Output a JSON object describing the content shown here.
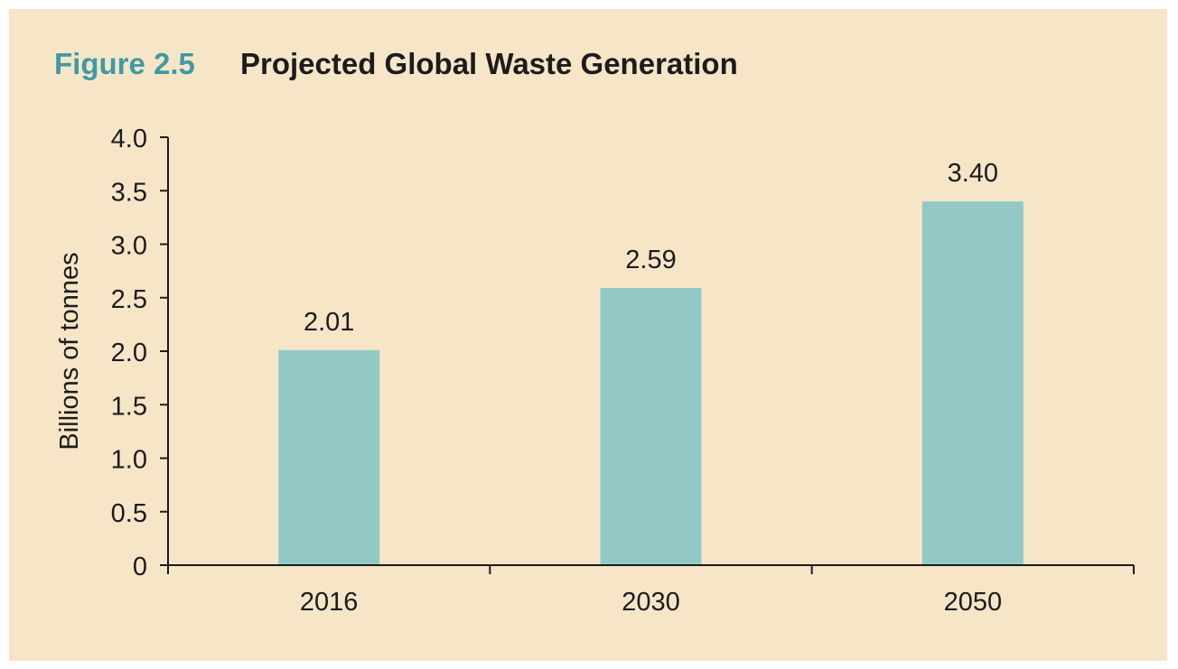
{
  "figure": {
    "label": "Figure 2.5",
    "title": "Projected Global Waste Generation"
  },
  "colors": {
    "background": "#f6e6c7",
    "bar": "#92c9c6",
    "accent": "#3f9aa3",
    "axis": "#1c1c1c"
  },
  "chart_data": {
    "type": "bar",
    "title": "Projected Global Waste Generation",
    "xlabel": "",
    "ylabel": "Billions of tonnes",
    "categories": [
      "2016",
      "2030",
      "2050"
    ],
    "values": [
      2.01,
      2.59,
      3.4
    ],
    "data_labels": [
      "2.01",
      "2.59",
      "3.40"
    ],
    "ylim": [
      0,
      4.0
    ],
    "yticks": [
      0,
      0.5,
      1.0,
      1.5,
      2.0,
      2.5,
      3.0,
      3.5,
      4.0
    ],
    "ytick_labels": [
      "0",
      "0.5",
      "1.0",
      "1.5",
      "2.0",
      "2.5",
      "3.0",
      "3.5",
      "4.0"
    ],
    "grid": false,
    "legend": "none"
  }
}
